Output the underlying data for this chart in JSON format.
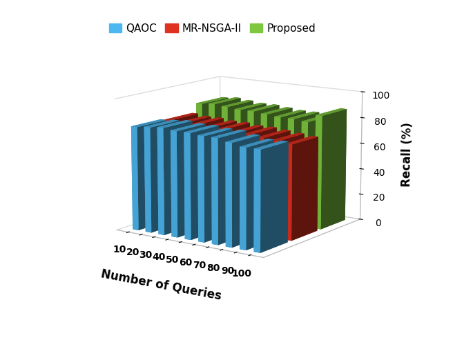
{
  "queries": [
    10,
    20,
    30,
    40,
    50,
    60,
    70,
    80,
    90,
    100
  ],
  "QAOC": [
    79,
    80,
    81,
    80,
    80,
    79,
    79,
    77,
    75,
    75
  ],
  "MR_NSGA2": [
    78,
    77,
    77,
    76,
    76,
    75,
    75,
    74,
    73,
    72
  ],
  "Proposed": [
    85,
    86,
    85,
    84,
    84,
    83,
    82,
    82,
    81,
    87
  ],
  "color_QAOC": "#4db8f0",
  "color_MR_NSGA2": "#e03020",
  "color_Proposed": "#7ec840",
  "xlabel": "Number of Queries",
  "ylabel": "Recall (%)",
  "yticks": [
    0,
    20,
    40,
    60,
    80,
    100
  ],
  "legend_labels": [
    "QAOC",
    "MR-NSGA-II",
    "Proposed"
  ],
  "elev": 12,
  "azim": -55
}
